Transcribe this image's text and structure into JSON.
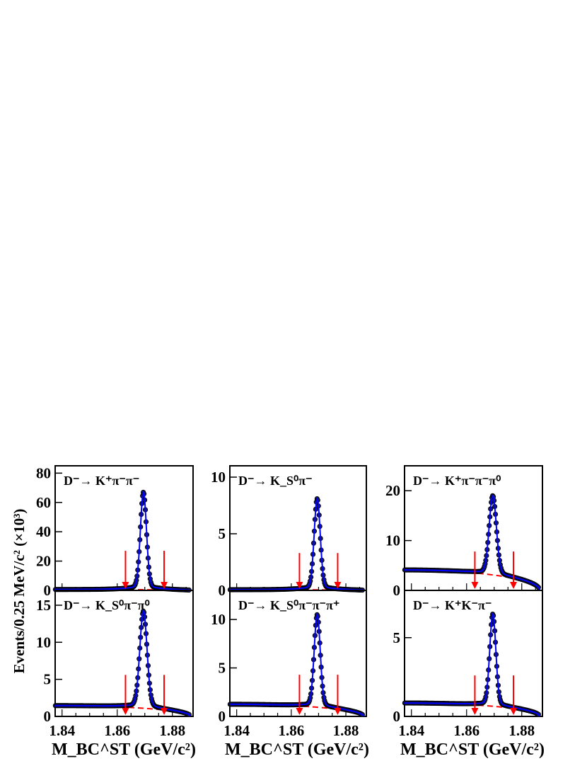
{
  "figure": {
    "ylabel": "Events/0.25 MeV/c² (×10³)",
    "xlabel": "M_BC^ST (GeV/c²)",
    "xticks": [
      "1.84",
      "1.86",
      "1.88"
    ],
    "colors": {
      "data": "#000000",
      "fit": "#0000ff",
      "background": "#ff0000",
      "arrows": "#ff0000",
      "marker_fill": "#1a1a55"
    }
  },
  "chart_data": [
    {
      "type": "scatter",
      "title": "D⁻→ K⁺π⁻π⁻",
      "xlim": [
        1.8375,
        1.8875
      ],
      "ylim": [
        0,
        85
      ],
      "yticks": [
        0,
        20,
        40,
        60,
        80
      ],
      "peak_position": 1.8695,
      "peak_height": 67,
      "peak_width": 0.0011,
      "background_level": 0.6,
      "background_endpoint": 1.8865,
      "signal_window": [
        1.863,
        1.877
      ],
      "arrow_top": 27,
      "series": [
        {
          "values_description_excluded": true,
          "values": []
        }
      ]
    },
    {
      "type": "scatter",
      "title": "D⁻→ K_S⁰π⁻",
      "xlim": [
        1.8375,
        1.8875
      ],
      "ylim": [
        0,
        11
      ],
      "yticks": [
        0,
        5,
        10
      ],
      "peak_position": 1.8695,
      "peak_height": 8.1,
      "peak_width": 0.0011,
      "background_level": 0.06,
      "background_endpoint": 1.8865,
      "signal_window": [
        1.863,
        1.877
      ],
      "arrow_top": 3.3,
      "series": [
        {
          "values": []
        }
      ]
    },
    {
      "type": "scatter",
      "title": "D⁻→ K⁺π⁻π⁻π⁰",
      "xlim": [
        1.8375,
        1.8875
      ],
      "ylim": [
        0,
        25
      ],
      "yticks": [
        0,
        10,
        20
      ],
      "peak_position": 1.8695,
      "peak_height": 19,
      "peak_width": 0.0013,
      "background_level": 4.1,
      "background_endpoint": 1.8865,
      "signal_window": [
        1.863,
        1.877
      ],
      "arrow_top": 7.8,
      "series": [
        {
          "values": []
        }
      ]
    },
    {
      "type": "scatter",
      "title": "D⁻→ K_S⁰π⁻π⁰",
      "xlim": [
        1.8375,
        1.8875
      ],
      "ylim": [
        0,
        17
      ],
      "yticks": [
        0,
        5,
        10,
        15
      ],
      "peak_position": 1.8695,
      "peak_height": 14.2,
      "peak_width": 0.0013,
      "background_level": 1.45,
      "background_endpoint": 1.8865,
      "signal_window": [
        1.863,
        1.877
      ],
      "arrow_top": 5.6,
      "series": [
        {
          "values": []
        }
      ]
    },
    {
      "type": "scatter",
      "title": "D⁻→ K_S⁰π⁻π⁻π⁺",
      "xlim": [
        1.8375,
        1.8875
      ],
      "ylim": [
        0,
        13
      ],
      "yticks": [
        0,
        5,
        10
      ],
      "peak_position": 1.8695,
      "peak_height": 10.5,
      "peak_width": 0.0011,
      "background_level": 1.25,
      "background_endpoint": 1.8865,
      "signal_window": [
        1.863,
        1.877
      ],
      "arrow_top": 4.3,
      "series": [
        {
          "values": []
        }
      ]
    },
    {
      "type": "scatter",
      "title": "D⁻→ K⁺K⁻π⁻",
      "xlim": [
        1.8375,
        1.8875
      ],
      "ylim": [
        0,
        8
      ],
      "yticks": [
        0,
        5
      ],
      "peak_position": 1.8695,
      "peak_height": 6.5,
      "peak_width": 0.0011,
      "background_level": 0.85,
      "background_endpoint": 1.8865,
      "signal_window": [
        1.863,
        1.877
      ],
      "arrow_top": 2.6,
      "series": [
        {
          "values": []
        }
      ]
    }
  ]
}
